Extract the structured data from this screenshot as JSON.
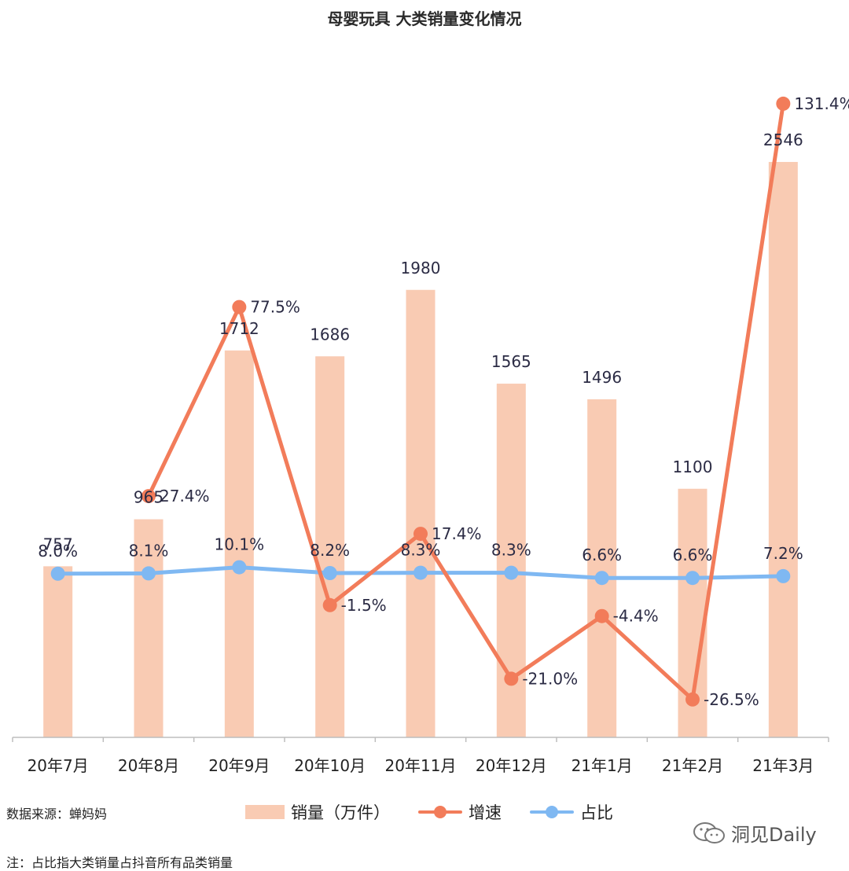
{
  "title": "母婴玩具 大类销量变化情况",
  "source": "数据来源：蝉妈妈",
  "note": "注：占比指大类销量占抖音所有品类销量",
  "brand": "洞见Daily",
  "chart_data": {
    "type": "bar",
    "categories": [
      "20年7月",
      "20年8月",
      "20年9月",
      "20年10月",
      "20年11月",
      "20年12月",
      "21年1月",
      "21年2月",
      "21年3月"
    ],
    "series": [
      {
        "name": "销量（万件）",
        "type": "bar",
        "color": "#f9cbb3",
        "values": [
          757,
          965,
          1712,
          1686,
          1980,
          1565,
          1496,
          1100,
          2546
        ],
        "labels": [
          "757",
          "965",
          "1712",
          "1686",
          "1980",
          "1565",
          "1496",
          "1100",
          "2546"
        ]
      },
      {
        "name": "增速",
        "type": "line",
        "color": "#f27c5a",
        "values": [
          null,
          27.4,
          77.5,
          -1.5,
          17.4,
          -21.0,
          -4.4,
          -26.5,
          131.4
        ],
        "labels": [
          "",
          "27.4%",
          "77.5%",
          "-1.5%",
          "17.4%",
          "-21.0%",
          "-4.4%",
          "-26.5%",
          "131.4%"
        ]
      },
      {
        "name": "占比",
        "type": "line",
        "color": "#7fb8f2",
        "values": [
          8.0,
          8.1,
          10.1,
          8.2,
          8.3,
          8.3,
          6.6,
          6.6,
          7.2
        ],
        "labels": [
          "8.0%",
          "8.1%",
          "10.1%",
          "8.2%",
          "8.3%",
          "8.3%",
          "6.6%",
          "6.6%",
          "7.2%"
        ]
      }
    ],
    "grid": false,
    "legend_position": "bottom"
  }
}
